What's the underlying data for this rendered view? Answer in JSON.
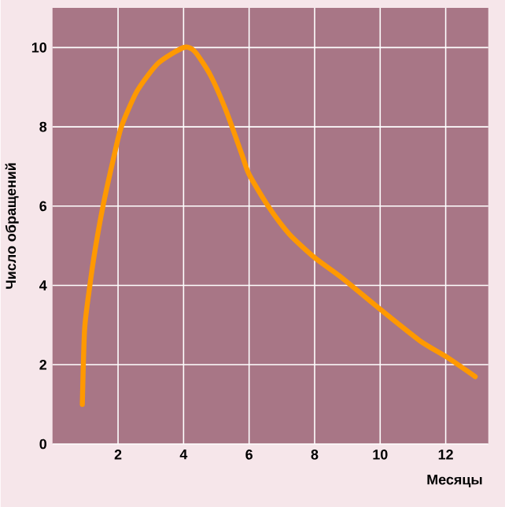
{
  "chart_data": {
    "type": "line",
    "xlabel": "Месяцы",
    "ylabel": "Число обращений",
    "x": [
      0.91,
      0.98,
      1.14,
      1.3,
      1.54,
      1.86,
      2.1,
      2.58,
      3.22,
      4.0,
      4.34,
      4.82,
      5.3,
      5.78,
      6.0,
      6.58,
      7.22,
      8.0,
      8.82,
      10.0,
      11.22,
      12.02,
      12.9
    ],
    "series": [
      {
        "color": "#ff9900",
        "values": [
          1.0,
          2.9,
          4.0,
          4.9,
          6.0,
          7.2,
          8.0,
          8.9,
          9.6,
          10.0,
          9.9,
          9.3,
          8.4,
          7.3,
          6.8,
          6.0,
          5.3,
          4.7,
          4.2,
          3.4,
          2.6,
          2.2,
          1.7
        ]
      }
    ],
    "xlim": [
      0,
      13.3
    ],
    "ylim": [
      0,
      11
    ],
    "xticks": [
      2,
      4,
      6,
      8,
      10,
      12
    ],
    "yticks": [
      0,
      2,
      4,
      6,
      8,
      10
    ],
    "grid": true,
    "marker": "none",
    "line_style": "solid"
  }
}
